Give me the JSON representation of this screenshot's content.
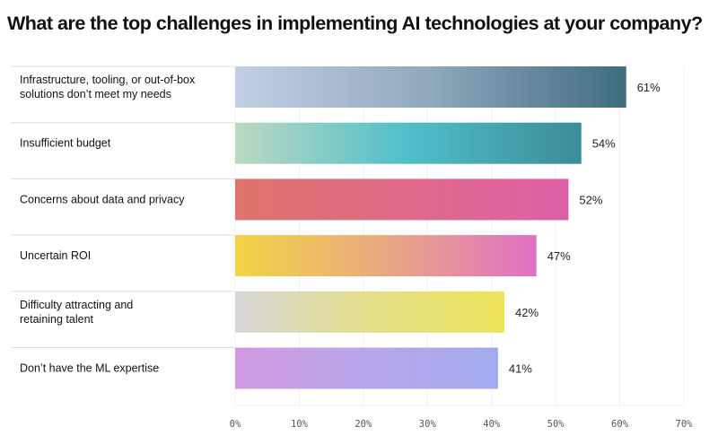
{
  "chart_data": {
    "type": "bar",
    "orientation": "horizontal",
    "title": "What are the top challenges in implementing AI technologies at your company?",
    "categories": [
      [
        "Infrastructure, tooling, or out-of-box",
        "solutions don’t meet my needs"
      ],
      [
        "Insufficient budget"
      ],
      [
        "Concerns about data and privacy"
      ],
      [
        "Uncertain ROI"
      ],
      [
        "Difficulty attracting and",
        "retaining talent"
      ],
      [
        "Don’t have the ML expertise"
      ]
    ],
    "values": [
      61,
      54,
      52,
      47,
      42,
      41
    ],
    "value_labels": [
      "61%",
      "54%",
      "52%",
      "47%",
      "42%",
      "41%"
    ],
    "xlim": [
      0,
      70
    ],
    "xticks": [
      0,
      10,
      20,
      30,
      40,
      50,
      60,
      70
    ],
    "xtick_labels": [
      "0%",
      "10%",
      "20%",
      "30%",
      "40%",
      "50%",
      "60%",
      "70%"
    ],
    "grid": true,
    "bar_gradients": [
      [
        "#c3cfe5",
        "#8fa8bc",
        "#3e6d7c"
      ],
      [
        "#bcd9c2",
        "#4fbfca",
        "#3b8c98"
      ],
      [
        "#e0736a",
        "#e06a88",
        "#dc5fa6"
      ],
      [
        "#f2d445",
        "#e8a882",
        "#e070c4"
      ],
      [
        "#d8d8d8",
        "#e4df8a",
        "#ece45a"
      ],
      [
        "#d09ae2",
        "#b8a6ea",
        "#a2aaee"
      ]
    ]
  }
}
